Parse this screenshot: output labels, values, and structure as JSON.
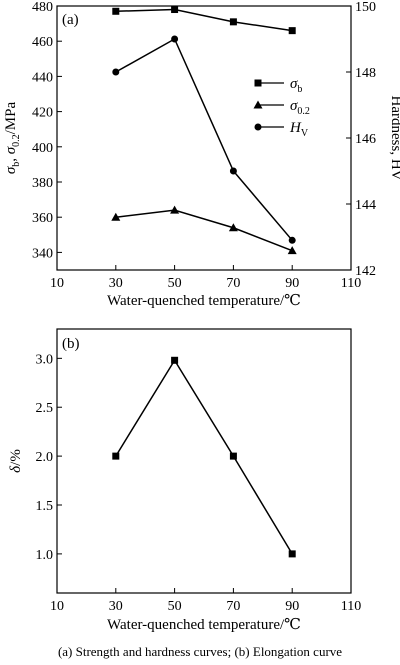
{
  "caption": "(a) Strength and hardness curves; (b) Elongation curve",
  "chart_data": [
    {
      "type": "line",
      "panel": "(a)",
      "x": [
        30,
        50,
        70,
        90
      ],
      "xlim": [
        10,
        110
      ],
      "xticks": [
        10,
        30,
        50,
        70,
        90,
        110
      ],
      "xlabel": "Water-quenched temperature/℃",
      "ylabel": "σb, σ0.2/MPa",
      "ylim": [
        330,
        480
      ],
      "yticks": [
        340,
        360,
        380,
        400,
        420,
        440,
        460,
        480
      ],
      "y2label": "Hardness, HV",
      "y2lim": [
        142,
        150
      ],
      "y2ticks": [
        142,
        144,
        146,
        148,
        150
      ],
      "legend_position": "center-right",
      "series": [
        {
          "name": "σb",
          "base": "σ",
          "sub": "b",
          "axis": "left",
          "marker": "square",
          "values": [
            477,
            478,
            471,
            466
          ]
        },
        {
          "name": "σ0.2",
          "base": "σ",
          "sub": "0.2",
          "axis": "left",
          "marker": "triangle",
          "values": [
            360,
            364,
            354,
            341
          ]
        },
        {
          "name": "HV",
          "base": "H",
          "sub": "V",
          "axis": "right",
          "marker": "circle",
          "values": [
            148.0,
            149.0,
            145.0,
            142.9
          ]
        }
      ]
    },
    {
      "type": "line",
      "panel": "(b)",
      "x": [
        30,
        50,
        70,
        90
      ],
      "xlim": [
        10,
        110
      ],
      "xticks": [
        10,
        30,
        50,
        70,
        90,
        110
      ],
      "xlabel": "Water-quenched temperature/℃",
      "ylabel": "δ/%",
      "ylim": [
        0.6,
        3.3
      ],
      "yticks": [
        "1.0",
        "1.5",
        "2.0",
        "2.5",
        "3.0"
      ],
      "series": [
        {
          "marker": "square",
          "values": [
            2.0,
            2.98,
            2.0,
            1.0
          ]
        }
      ]
    }
  ]
}
